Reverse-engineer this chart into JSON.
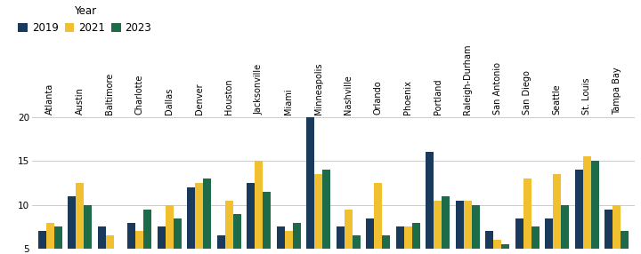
{
  "cities": [
    "Atlanta",
    "Austin",
    "Baltimore",
    "Charlotte",
    "Dallas",
    "Denver",
    "Houston",
    "Jacksonville",
    "Miami",
    "Minneapolis",
    "Nashville",
    "Orlando",
    "Phoenix",
    "Portland",
    "Raleigh-Durham",
    "San Antonio",
    "San Diego",
    "Seattle",
    "St. Louis",
    "Tampa Bay"
  ],
  "y2019": [
    7.0,
    11.0,
    7.5,
    8.0,
    7.5,
    12.0,
    6.5,
    12.5,
    7.5,
    20.0,
    7.5,
    8.5,
    7.5,
    16.0,
    10.5,
    7.0,
    8.5,
    8.5,
    14.0,
    9.5
  ],
  "y2021": [
    8.0,
    12.5,
    6.5,
    7.0,
    10.0,
    12.5,
    10.5,
    15.0,
    7.0,
    13.5,
    9.5,
    12.5,
    7.5,
    10.5,
    10.5,
    6.0,
    13.0,
    13.5,
    15.5,
    10.0
  ],
  "y2023": [
    7.5,
    10.0,
    5.0,
    9.5,
    8.5,
    13.0,
    9.0,
    11.5,
    8.0,
    14.0,
    6.5,
    6.5,
    8.0,
    11.0,
    10.0,
    5.5,
    7.5,
    10.0,
    15.0,
    7.0
  ],
  "color_2019": "#1a3a5c",
  "color_2021": "#f0c030",
  "color_2023": "#1e6b4a",
  "ylim_min": 5,
  "ylim_max": 20,
  "yticks": [
    5,
    10,
    15,
    20
  ],
  "legend_title": "Year",
  "legend_labels": [
    "2019",
    "2021",
    "2023"
  ],
  "bar_width": 0.27,
  "background_color": "#ffffff",
  "grid_color": "#cccccc",
  "label_fontsize": 7.0,
  "tick_fontsize": 7.5
}
